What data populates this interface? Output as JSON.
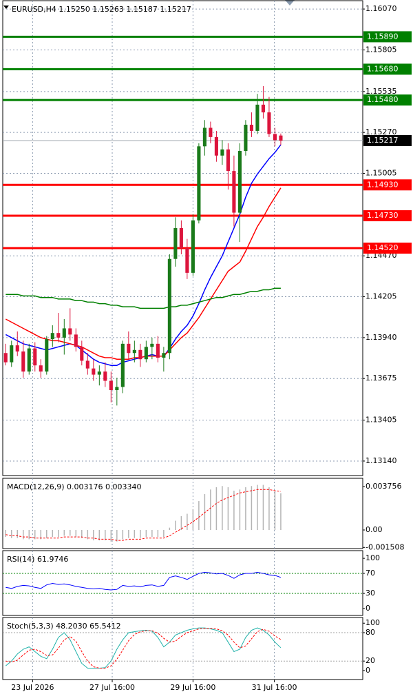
{
  "chart_data": [
    {
      "type": "candlestick",
      "title": "EURUSD,H4  1.15250 1.15263 1.15187 1.15217",
      "open": [
        1.1384,
        1.1378,
        1.1389,
        1.1385,
        1.1372,
        1.1387,
        1.1376,
        1.1372,
        1.1393,
        1.1397,
        1.1394,
        1.14,
        1.1396,
        1.1388,
        1.1379,
        1.1374,
        1.137,
        1.1372,
        1.1366,
        1.136,
        1.1362,
        1.139,
        1.1384,
        1.1386,
        1.138,
        1.1388,
        1.139,
        1.1381,
        1.1384,
        1.1445,
        1.1465,
        1.1452,
        1.1436,
        1.147,
        1.1518,
        1.153,
        1.1524,
        1.1512,
        1.1516,
        1.1502,
        1.1475,
        1.1515,
        1.1532,
        1.1528,
        1.1545,
        1.154,
        1.1526,
        1.1525
      ],
      "high": [
        1.139,
        1.1392,
        1.1398,
        1.1392,
        1.139,
        1.1391,
        1.138,
        1.1395,
        1.1402,
        1.141,
        1.1406,
        1.1413,
        1.14,
        1.1392,
        1.1384,
        1.138,
        1.1376,
        1.1378,
        1.1372,
        1.1368,
        1.1392,
        1.1398,
        1.1392,
        1.139,
        1.1392,
        1.1394,
        1.1395,
        1.1388,
        1.1448,
        1.1472,
        1.147,
        1.1458,
        1.1474,
        1.152,
        1.1535,
        1.1534,
        1.1528,
        1.1522,
        1.152,
        1.1512,
        1.152,
        1.1535,
        1.154,
        1.1552,
        1.1557,
        1.155,
        1.153,
        1.15263
      ],
      "low": [
        1.1376,
        1.1375,
        1.1382,
        1.1368,
        1.137,
        1.1372,
        1.1368,
        1.137,
        1.1388,
        1.1391,
        1.1383,
        1.1392,
        1.1385,
        1.1376,
        1.137,
        1.1366,
        1.1363,
        1.1362,
        1.1352,
        1.135,
        1.1358,
        1.138,
        1.1378,
        1.1375,
        1.1378,
        1.138,
        1.1378,
        1.1372,
        1.138,
        1.144,
        1.1448,
        1.1432,
        1.1434,
        1.1468,
        1.1512,
        1.152,
        1.1508,
        1.1506,
        1.149,
        1.1466,
        1.1456,
        1.1512,
        1.1524,
        1.1526,
        1.1536,
        1.1524,
        1.1518,
        1.15187
      ],
      "close": [
        1.1378,
        1.1389,
        1.1385,
        1.1372,
        1.1387,
        1.1376,
        1.1372,
        1.1393,
        1.1397,
        1.1394,
        1.14,
        1.1396,
        1.1388,
        1.1379,
        1.1374,
        1.137,
        1.1372,
        1.1366,
        1.136,
        1.1362,
        1.139,
        1.1384,
        1.1386,
        1.138,
        1.1388,
        1.139,
        1.1381,
        1.1384,
        1.1445,
        1.1465,
        1.1452,
        1.1436,
        1.147,
        1.1518,
        1.153,
        1.1524,
        1.1512,
        1.1516,
        1.1502,
        1.1475,
        1.1515,
        1.1532,
        1.1528,
        1.1545,
        1.154,
        1.1526,
        1.1522,
        1.15217
      ],
      "up_color": "#1a7a1a",
      "down_color": "#dc143c",
      "lines": [
        {
          "color": "#0000ff",
          "values": [
            1.1396,
            1.1394,
            1.1392,
            1.139,
            1.1389,
            1.1388,
            1.1387,
            1.1386,
            1.1387,
            1.1388,
            1.1389,
            1.139,
            1.1389,
            1.1386,
            1.1383,
            1.138,
            1.1378,
            1.1377,
            1.1376,
            1.1376,
            1.1378,
            1.1379,
            1.138,
            1.1381,
            1.1382,
            1.1383,
            1.1382,
            1.1382,
            1.1387,
            1.1393,
            1.1398,
            1.1402,
            1.1408,
            1.1416,
            1.1425,
            1.1433,
            1.144,
            1.1447,
            1.1456,
            1.1465,
            1.1474,
            1.1485,
            1.1494,
            1.15,
            1.1505,
            1.151,
            1.1514,
            1.1519
          ]
        },
        {
          "color": "#ff0000",
          "values": [
            1.1406,
            1.1404,
            1.1402,
            1.14,
            1.1398,
            1.1396,
            1.1394,
            1.1393,
            1.1392,
            1.1392,
            1.1391,
            1.139,
            1.1389,
            1.1388,
            1.1386,
            1.1384,
            1.1382,
            1.1381,
            1.1381,
            1.138,
            1.138,
            1.138,
            1.1381,
            1.1381,
            1.1382,
            1.1382,
            1.1382,
            1.1382,
            1.1386,
            1.139,
            1.1394,
            1.1397,
            1.1402,
            1.1407,
            1.1413,
            1.1419,
            1.1425,
            1.1431,
            1.1437,
            1.144,
            1.1443,
            1.145,
            1.1458,
            1.1466,
            1.1472,
            1.1479,
            1.1485,
            1.1491
          ]
        },
        {
          "color": "#008000",
          "values": [
            1.1422,
            1.1422,
            1.1422,
            1.1421,
            1.1421,
            1.1421,
            1.142,
            1.142,
            1.142,
            1.1419,
            1.1419,
            1.1419,
            1.1418,
            1.1418,
            1.1417,
            1.1417,
            1.1416,
            1.1416,
            1.1415,
            1.1415,
            1.1414,
            1.1414,
            1.1414,
            1.1413,
            1.1413,
            1.1413,
            1.1413,
            1.1413,
            1.1414,
            1.1414,
            1.1415,
            1.1415,
            1.1416,
            1.1417,
            1.1418,
            1.1419,
            1.142,
            1.142,
            1.1421,
            1.1422,
            1.1422,
            1.1423,
            1.1424,
            1.1424,
            1.1425,
            1.1425,
            1.1426,
            1.1426
          ]
        }
      ],
      "levels": [
        {
          "value": 1.1589,
          "label": "1.15890",
          "color": "#008000"
        },
        {
          "value": 1.1568,
          "label": "1.15680",
          "color": "#008000"
        },
        {
          "value": 1.1548,
          "label": "1.15480",
          "color": "#008000"
        },
        {
          "value": 1.1493,
          "label": "1.14930",
          "color": "#ff0000"
        },
        {
          "value": 1.1473,
          "label": "1.14730",
          "color": "#ff0000"
        },
        {
          "value": 1.1452,
          "label": "1.14520",
          "color": "#ff0000"
        }
      ],
      "last_price": {
        "value": 1.15217,
        "label": "1.15217"
      },
      "ylim": [
        1.13046,
        1.16124
      ],
      "yticks": [
        {
          "value": 1.1607,
          "label": "1.16070"
        },
        {
          "value": 1.15805,
          "label": "1.15805"
        },
        {
          "value": 1.15535,
          "label": "1.15535"
        },
        {
          "value": 1.1527,
          "label": "1.15270"
        },
        {
          "value": 1.15005,
          "label": "1.15005"
        },
        {
          "value": 1.1447,
          "label": "1.14470"
        },
        {
          "value": 1.14205,
          "label": "1.14205"
        },
        {
          "value": 1.1394,
          "label": "1.13940"
        },
        {
          "value": 1.13675,
          "label": "1.13675"
        },
        {
          "value": 1.13405,
          "label": "1.13405"
        },
        {
          "value": 1.1314,
          "label": "1.13140"
        }
      ],
      "xlim": [
        -0.5,
        61
      ],
      "xticks": [
        {
          "value": 4.6,
          "label": "23 Jul 2026"
        },
        {
          "value": 18.2,
          "label": "27 Jul 16:00"
        },
        {
          "value": 32,
          "label": "29 Jul 16:00"
        },
        {
          "value": 45.9,
          "label": "31 Jul 16:00"
        }
      ],
      "grid": true
    },
    {
      "type": "macd",
      "title": "MACD(12,26,9) 0.003176 0.003340",
      "histogram": [
        -0.0006,
        -0.0007,
        -0.0007,
        -0.0008,
        -0.0008,
        -0.0008,
        -0.0008,
        -0.0007,
        -0.0006,
        -0.0006,
        -0.0005,
        -0.0005,
        -0.0006,
        -0.0007,
        -0.0008,
        -0.0009,
        -0.0009,
        -0.0009,
        -0.001,
        -0.001,
        -0.0008,
        -0.0007,
        -0.0007,
        -0.0007,
        -0.0006,
        -0.0006,
        -0.0006,
        -0.0006,
        0.0002,
        0.0008,
        0.0012,
        0.0014,
        0.0018,
        0.0025,
        0.0031,
        0.0035,
        0.0037,
        0.0038,
        0.0037,
        0.0034,
        0.0035,
        0.0037,
        0.0038,
        0.0039,
        0.0039,
        0.0037,
        0.0034,
        0.003176
      ],
      "signal": [
        -0.0004,
        -0.0005,
        -0.0005,
        -0.0006,
        -0.0006,
        -0.0007,
        -0.0007,
        -0.0007,
        -0.0007,
        -0.0007,
        -0.0006,
        -0.0006,
        -0.0006,
        -0.0006,
        -0.0007,
        -0.0007,
        -0.0008,
        -0.0008,
        -0.0008,
        -0.0009,
        -0.0009,
        -0.0008,
        -0.0008,
        -0.0008,
        -0.0007,
        -0.0007,
        -0.0007,
        -0.0007,
        -0.0005,
        -0.0002,
        0.0001,
        0.0004,
        0.0007,
        0.0011,
        0.0015,
        0.0019,
        0.0023,
        0.0026,
        0.0028,
        0.003,
        0.0032,
        0.0033,
        0.0034,
        0.0035,
        0.0035,
        0.0035,
        0.0034,
        0.00334
      ],
      "histogram_color": "#b4b4b4",
      "signal_color": "#ff0000",
      "ylim": [
        -0.00161,
        0.00447
      ],
      "yticks": [
        0.003756,
        {
          "value": 0,
          "label": "0.00"
        },
        -0.001508
      ]
    },
    {
      "type": "rsi",
      "title": "RSI(14) 61.9746",
      "values": [
        42,
        40,
        44,
        46,
        45,
        42,
        40,
        47,
        50,
        48,
        49,
        47,
        44,
        42,
        40,
        39,
        40,
        38,
        37,
        38,
        46,
        44,
        45,
        43,
        46,
        47,
        44,
        46,
        62,
        65,
        62,
        58,
        64,
        70,
        72,
        71,
        69,
        70,
        66,
        60,
        67,
        70,
        70,
        72,
        70,
        67,
        66,
        61.9746
      ],
      "color": "#0000ff",
      "levels": [
        70,
        30
      ],
      "ylim": [
        -13.9,
        115.3
      ],
      "yticks": [
        100,
        70,
        30,
        0
      ]
    },
    {
      "type": "stoch",
      "title": "Stoch(5,3,3) 48.2030 65.5412",
      "main": [
        10,
        20,
        35,
        45,
        50,
        40,
        30,
        25,
        45,
        70,
        80,
        65,
        40,
        15,
        5,
        5,
        5,
        6,
        20,
        45,
        65,
        80,
        82,
        84,
        85,
        83,
        70,
        50,
        60,
        75,
        80,
        85,
        88,
        90,
        90,
        88,
        85,
        80,
        60,
        40,
        45,
        70,
        85,
        90,
        85,
        75,
        60,
        48.203
      ],
      "signal": [
        20,
        18,
        22,
        33,
        43,
        45,
        40,
        32,
        33,
        47,
        65,
        72,
        62,
        40,
        20,
        8,
        5,
        5,
        10,
        24,
        43,
        63,
        76,
        82,
        84,
        84,
        79,
        68,
        60,
        62,
        72,
        80,
        84,
        88,
        89,
        89,
        88,
        84,
        75,
        60,
        48,
        52,
        67,
        82,
        87,
        83,
        73,
        65.5412
      ],
      "main_color": "#20b2aa",
      "signal_color": "#ff0000",
      "levels": [
        80,
        20
      ],
      "ylim": [
        -19,
        112
      ],
      "yticks": [
        100,
        80,
        20,
        0
      ]
    }
  ]
}
